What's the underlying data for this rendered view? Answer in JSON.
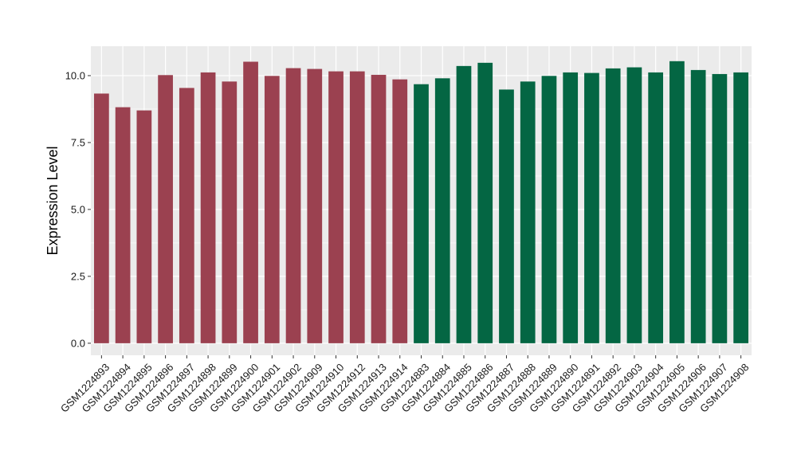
{
  "chart_data": {
    "type": "bar",
    "ylabel": "Expression Level",
    "ylim": [
      -0.45,
      11.1
    ],
    "yticks": [
      0.0,
      2.5,
      5.0,
      7.5,
      10.0
    ],
    "ytick_labels": [
      "0.0",
      "2.5",
      "5.0",
      "7.5",
      "10.0"
    ],
    "grid": true,
    "legend": "none",
    "categories": [
      "GSM1224893",
      "GSM1224894",
      "GSM1224895",
      "GSM1224896",
      "GSM1224897",
      "GSM1224898",
      "GSM1224899",
      "GSM1224900",
      "GSM1224901",
      "GSM1224902",
      "GSM1224909",
      "GSM1224910",
      "GSM1224912",
      "GSM1224913",
      "GSM1224914",
      "GSM1224883",
      "GSM1224884",
      "GSM1224885",
      "GSM1224886",
      "GSM1224887",
      "GSM1224888",
      "GSM1224889",
      "GSM1224890",
      "GSM1224891",
      "GSM1224892",
      "GSM1224903",
      "GSM1224904",
      "GSM1224905",
      "GSM1224906",
      "GSM1224907",
      "GSM1224908"
    ],
    "values": [
      9.33,
      8.82,
      8.7,
      10.02,
      9.54,
      10.12,
      9.78,
      10.52,
      9.99,
      10.28,
      10.25,
      10.16,
      10.16,
      10.03,
      9.86,
      9.68,
      9.9,
      10.36,
      10.48,
      9.48,
      9.78,
      9.99,
      10.12,
      10.1,
      10.27,
      10.31,
      10.12,
      10.54,
      10.21,
      10.06,
      10.12
    ],
    "bar_colors": [
      "#9b4150",
      "#9b4150",
      "#9b4150",
      "#9b4150",
      "#9b4150",
      "#9b4150",
      "#9b4150",
      "#9b4150",
      "#9b4150",
      "#9b4150",
      "#9b4150",
      "#9b4150",
      "#9b4150",
      "#9b4150",
      "#9b4150",
      "#046643",
      "#046643",
      "#046643",
      "#046643",
      "#046643",
      "#046643",
      "#046643",
      "#046643",
      "#046643",
      "#046643",
      "#046643",
      "#046643",
      "#046643",
      "#046643",
      "#046643",
      "#046643"
    ],
    "panel_background": "#ebebeb",
    "grid_color": "#ffffff"
  }
}
